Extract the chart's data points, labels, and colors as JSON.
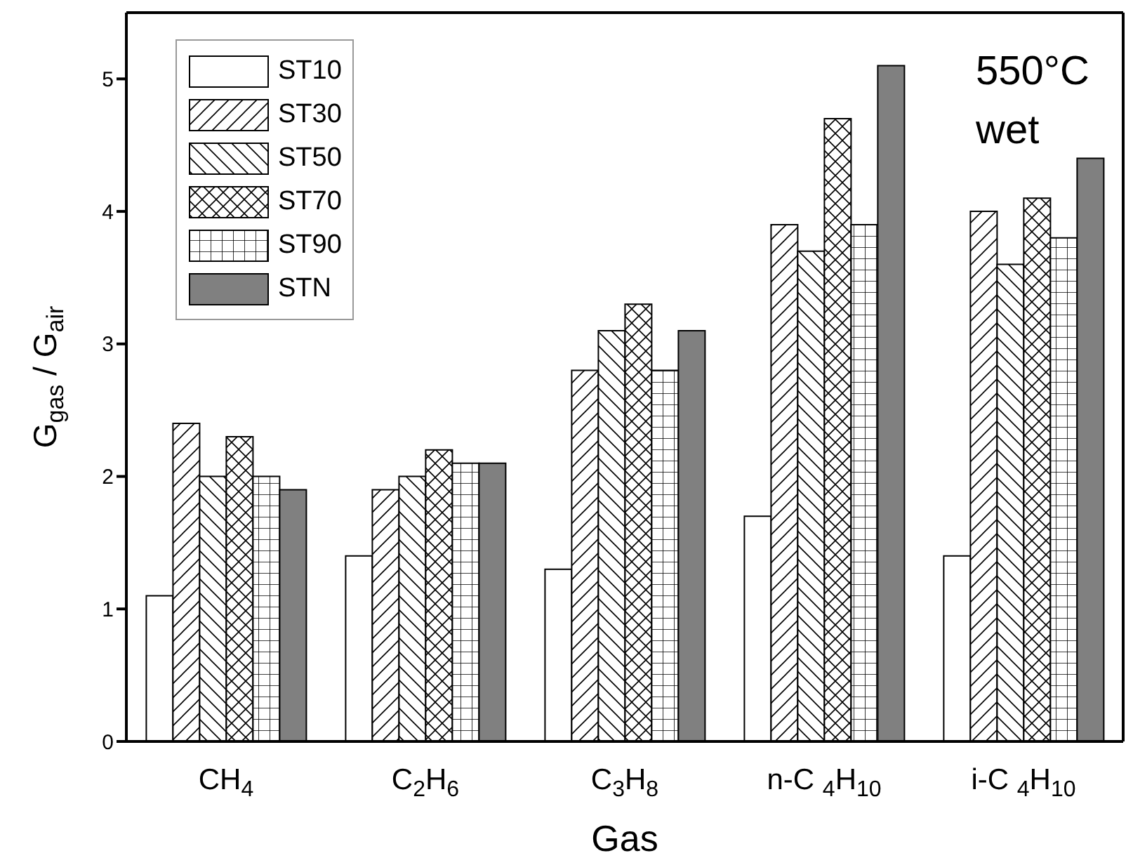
{
  "chart_data": {
    "type": "bar",
    "categories": [
      "CH$_{4}$",
      "C$_{2}$H$_{6}$",
      "C$_{3}$H$_{8}$",
      "n-C $_{4}$H$_{10}$",
      "i-C $_{4}$H$_{10}$"
    ],
    "series": [
      {
        "name": "ST10",
        "color": "#ffffff",
        "values": [
          1.1,
          1.4,
          1.3,
          1.7,
          1.4
        ]
      },
      {
        "name": "ST30",
        "color": "#000000",
        "values": [
          2.4,
          1.9,
          2.8,
          3.9,
          4.0
        ]
      },
      {
        "name": "ST50",
        "color": "#000000",
        "values": [
          2.0,
          2.0,
          3.1,
          3.7,
          3.6
        ]
      },
      {
        "name": "ST70",
        "color": "#000000",
        "values": [
          2.3,
          2.2,
          3.3,
          4.7,
          4.1
        ]
      },
      {
        "name": "ST90",
        "color": "#000000",
        "values": [
          2.0,
          2.1,
          2.8,
          3.9,
          3.8
        ]
      },
      {
        "name": "STN",
        "color": "#808080",
        "values": [
          1.9,
          2.1,
          3.1,
          5.1,
          4.4
        ]
      }
    ],
    "xlabel": "Gas",
    "ylabel": "G$_{gas}$ / G$_{air}$",
    "ylim": [
      0,
      5.5
    ],
    "yticks": [
      0,
      1,
      2,
      3,
      4,
      5
    ],
    "annotations": [
      "550°C",
      "wet"
    ],
    "legend": "top left"
  }
}
